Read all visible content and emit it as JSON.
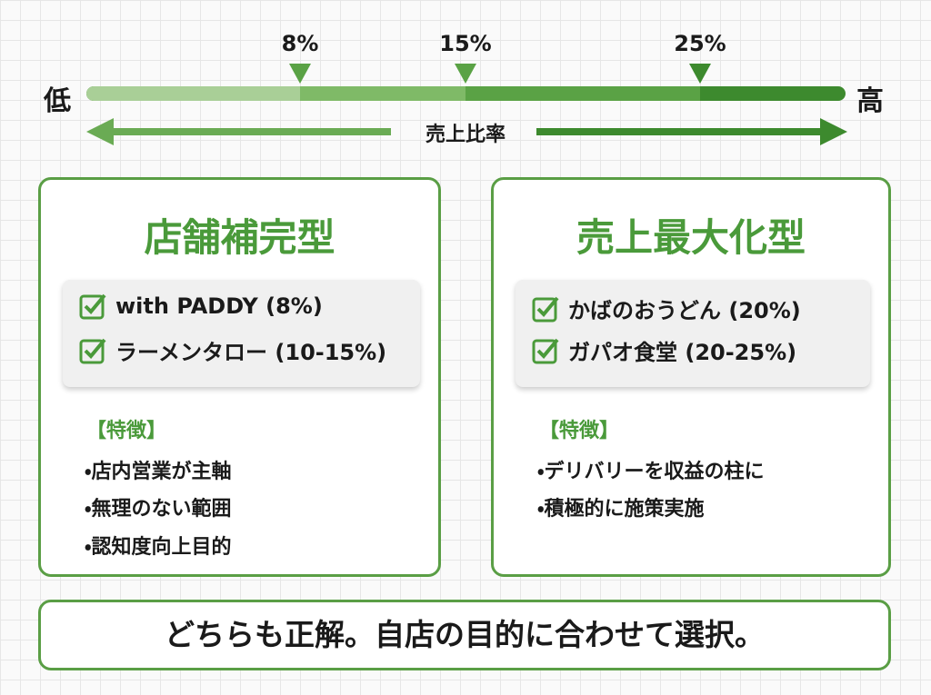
{
  "scale": {
    "low": "低",
    "high": "高",
    "axis_label": "売上比率",
    "markers": [
      "8%",
      "15%",
      "25%"
    ]
  },
  "panels": [
    {
      "title": "店舗補完型",
      "examples": [
        "with PADDY (8%)",
        "ラーメンタロー (10-15%)"
      ],
      "features_heading": "【特徴】",
      "features": [
        "・店内営業が主軸",
        "・無理のない範囲",
        "・認知度向上目的"
      ]
    },
    {
      "title": "売上最大化型",
      "examples": [
        "かばのおうどん (20%)",
        "ガパオ食堂 (20-25%)"
      ],
      "features_heading": "【特徴】",
      "features": [
        "・デリバリーを収益の柱に",
        "・積極的に施策実施"
      ]
    }
  ],
  "conclusion": "どちらも正解。自店の目的に合わせて選択。"
}
